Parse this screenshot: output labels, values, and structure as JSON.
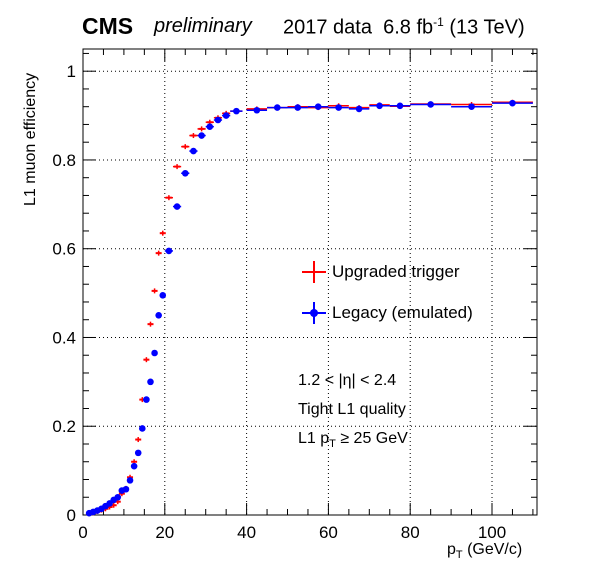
{
  "header": {
    "experiment": "CMS",
    "status": "preliminary",
    "dataset": "2017 data",
    "lumi_value": "6.8 fb",
    "lumi_exp": "-1",
    "energy": "(13 TeV)"
  },
  "annotations": {
    "eta_range": "1.2 < |η| < 2.4",
    "quality": "Tight L1 quality",
    "pt_cut_prefix": "L1 p",
    "pt_cut_sub": "T",
    "pt_cut_suffix": " ≥ 25 GeV"
  },
  "axis_text": {
    "x_prefix": "p",
    "x_sub": "T",
    "x_suffix": " (GeV/c)",
    "y": "L1 muon efficiency"
  },
  "chart_data": {
    "type": "scatter",
    "xlim": [
      0,
      111
    ],
    "ylim": [
      0,
      1.05
    ],
    "xticks": [
      0,
      20,
      40,
      60,
      80,
      100
    ],
    "yticks": [
      0,
      0.2,
      0.4,
      0.6,
      0.8,
      1
    ],
    "grid": true,
    "legend_position": "center-right",
    "series": [
      {
        "name": "Upgraded trigger",
        "color": "#ff0000",
        "marker": "cross",
        "points": [
          {
            "x": 1.5,
            "y": 0.003,
            "xerr": 0.5
          },
          {
            "x": 2.5,
            "y": 0.005,
            "xerr": 0.5
          },
          {
            "x": 3.5,
            "y": 0.008,
            "xerr": 0.5
          },
          {
            "x": 4.5,
            "y": 0.011,
            "xerr": 0.5
          },
          {
            "x": 5.5,
            "y": 0.014,
            "xerr": 0.5
          },
          {
            "x": 6.5,
            "y": 0.018,
            "xerr": 0.5
          },
          {
            "x": 7.5,
            "y": 0.022,
            "xerr": 0.5
          },
          {
            "x": 8.5,
            "y": 0.03,
            "xerr": 0.5
          },
          {
            "x": 9.5,
            "y": 0.048,
            "xerr": 0.5
          },
          {
            "x": 10.5,
            "y": 0.06,
            "xerr": 0.5
          },
          {
            "x": 11.5,
            "y": 0.085,
            "xerr": 0.5
          },
          {
            "x": 12.5,
            "y": 0.12,
            "xerr": 0.5
          },
          {
            "x": 13.5,
            "y": 0.17,
            "xerr": 0.5
          },
          {
            "x": 14.5,
            "y": 0.26,
            "xerr": 0.5
          },
          {
            "x": 15.5,
            "y": 0.35,
            "xerr": 0.5
          },
          {
            "x": 16.5,
            "y": 0.43,
            "xerr": 0.5
          },
          {
            "x": 17.5,
            "y": 0.505,
            "xerr": 0.5
          },
          {
            "x": 18.5,
            "y": 0.59,
            "xerr": 0.5
          },
          {
            "x": 19.5,
            "y": 0.635,
            "xerr": 0.5
          },
          {
            "x": 21,
            "y": 0.715,
            "xerr": 1
          },
          {
            "x": 23,
            "y": 0.785,
            "xerr": 1
          },
          {
            "x": 25,
            "y": 0.83,
            "xerr": 1
          },
          {
            "x": 27,
            "y": 0.855,
            "xerr": 1
          },
          {
            "x": 29,
            "y": 0.87,
            "xerr": 1
          },
          {
            "x": 31,
            "y": 0.885,
            "xerr": 1
          },
          {
            "x": 33,
            "y": 0.895,
            "xerr": 1
          },
          {
            "x": 35,
            "y": 0.905,
            "xerr": 1
          },
          {
            "x": 37.5,
            "y": 0.91,
            "xerr": 1.5
          },
          {
            "x": 42.5,
            "y": 0.915,
            "xerr": 2.5
          },
          {
            "x": 47.5,
            "y": 0.918,
            "xerr": 2.5
          },
          {
            "x": 52.5,
            "y": 0.92,
            "xerr": 2.5
          },
          {
            "x": 57.5,
            "y": 0.918,
            "xerr": 2.5
          },
          {
            "x": 62.5,
            "y": 0.922,
            "xerr": 2.5
          },
          {
            "x": 67.5,
            "y": 0.918,
            "xerr": 2.5
          },
          {
            "x": 72.5,
            "y": 0.924,
            "xerr": 2.5
          },
          {
            "x": 77.5,
            "y": 0.921,
            "xerr": 2.5
          },
          {
            "x": 85,
            "y": 0.926,
            "xerr": 5
          },
          {
            "x": 95,
            "y": 0.925,
            "xerr": 5
          },
          {
            "x": 105,
            "y": 0.93,
            "xerr": 5
          }
        ]
      },
      {
        "name": "Legacy (emulated)",
        "color": "#0000ff",
        "marker": "circle",
        "points": [
          {
            "x": 1.5,
            "y": 0.004,
            "xerr": 0.5
          },
          {
            "x": 2.5,
            "y": 0.007,
            "xerr": 0.5
          },
          {
            "x": 3.5,
            "y": 0.01,
            "xerr": 0.5
          },
          {
            "x": 4.5,
            "y": 0.014,
            "xerr": 0.5
          },
          {
            "x": 5.5,
            "y": 0.02,
            "xerr": 0.5
          },
          {
            "x": 6.5,
            "y": 0.026,
            "xerr": 0.5
          },
          {
            "x": 7.5,
            "y": 0.034,
            "xerr": 0.5
          },
          {
            "x": 8.5,
            "y": 0.04,
            "xerr": 0.5
          },
          {
            "x": 9.5,
            "y": 0.055,
            "xerr": 0.5
          },
          {
            "x": 10.5,
            "y": 0.058,
            "xerr": 0.5
          },
          {
            "x": 11.5,
            "y": 0.078,
            "xerr": 0.5
          },
          {
            "x": 12.5,
            "y": 0.11,
            "xerr": 0.5
          },
          {
            "x": 13.5,
            "y": 0.14,
            "xerr": 0.5
          },
          {
            "x": 14.5,
            "y": 0.195,
            "xerr": 0.5
          },
          {
            "x": 15.5,
            "y": 0.26,
            "xerr": 0.5
          },
          {
            "x": 16.5,
            "y": 0.3,
            "xerr": 0.5
          },
          {
            "x": 17.5,
            "y": 0.365,
            "xerr": 0.5
          },
          {
            "x": 18.5,
            "y": 0.45,
            "xerr": 0.5
          },
          {
            "x": 19.5,
            "y": 0.495,
            "xerr": 0.5
          },
          {
            "x": 21,
            "y": 0.595,
            "xerr": 1
          },
          {
            "x": 23,
            "y": 0.695,
            "xerr": 1
          },
          {
            "x": 25,
            "y": 0.77,
            "xerr": 1
          },
          {
            "x": 27,
            "y": 0.82,
            "xerr": 1
          },
          {
            "x": 29,
            "y": 0.855,
            "xerr": 1
          },
          {
            "x": 31,
            "y": 0.875,
            "xerr": 1
          },
          {
            "x": 33,
            "y": 0.89,
            "xerr": 1
          },
          {
            "x": 35,
            "y": 0.9,
            "xerr": 1
          },
          {
            "x": 37.5,
            "y": 0.91,
            "xerr": 1.5
          },
          {
            "x": 42.5,
            "y": 0.912,
            "xerr": 2.5
          },
          {
            "x": 47.5,
            "y": 0.918,
            "xerr": 2.5
          },
          {
            "x": 52.5,
            "y": 0.918,
            "xerr": 2.5
          },
          {
            "x": 57.5,
            "y": 0.92,
            "xerr": 2.5
          },
          {
            "x": 62.5,
            "y": 0.918,
            "xerr": 2.5
          },
          {
            "x": 67.5,
            "y": 0.915,
            "xerr": 2.5
          },
          {
            "x": 72.5,
            "y": 0.922,
            "xerr": 2.5
          },
          {
            "x": 77.5,
            "y": 0.922,
            "xerr": 2.5
          },
          {
            "x": 85,
            "y": 0.925,
            "xerr": 5
          },
          {
            "x": 95,
            "y": 0.92,
            "xerr": 5
          },
          {
            "x": 105,
            "y": 0.928,
            "xerr": 5
          }
        ]
      }
    ]
  }
}
